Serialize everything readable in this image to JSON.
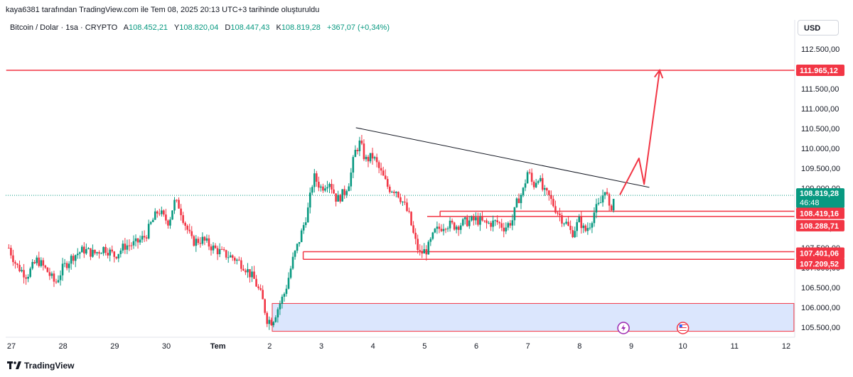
{
  "header": {
    "created_by": "kaya6381 tarafından TradingView.com ile Tem 08, 2025 20:13 UTC+3 tarihinde oluşturuldu"
  },
  "symbol": {
    "name": "Bitcoin / Dolar · 1sa · CRYPTO",
    "open_label": "A",
    "open": "108.452,21",
    "high_label": "Y",
    "high": "108.820,04",
    "low_label": "D",
    "low": "108.447,43",
    "close_label": "K",
    "close": "108.819,28",
    "change": "+367,07 (+0,34%)"
  },
  "currency": "USD",
  "footer": {
    "brand": "TradingView"
  },
  "colors": {
    "up": "#089981",
    "down": "#f23645",
    "line": "#131722",
    "zone": "#dbe6fd"
  },
  "chart_data": {
    "type": "candlestick",
    "ylim": [
      105300,
      112800
    ],
    "y_ticks": [
      105500,
      106000,
      106500,
      107000,
      107500,
      108000,
      108500,
      109000,
      109500,
      110000,
      110500,
      111000,
      111500,
      112000,
      112500
    ],
    "y_tick_labels": [
      "105.500,00",
      "106.000,00",
      "106.500,00",
      "107.000,00",
      "107.500,00",
      "108.000,00",
      "108.500,00",
      "109.000,00",
      "109.500,00",
      "110.000,00",
      "110.500,00",
      "111.000,00",
      "111.500,00",
      "112.000,00",
      "112.500,00"
    ],
    "x_range": [
      27,
      112
    ],
    "x_ticks": [
      {
        "x": 27,
        "label": "27"
      },
      {
        "x": 28,
        "label": "28"
      },
      {
        "x": 29,
        "label": "29"
      },
      {
        "x": 30,
        "label": "30"
      },
      {
        "x": 31,
        "label": "Tem"
      },
      {
        "x": 32,
        "label": "2"
      },
      {
        "x": 33,
        "label": "3"
      },
      {
        "x": 34,
        "label": "4"
      },
      {
        "x": 35,
        "label": "5"
      },
      {
        "x": 36,
        "label": "6"
      },
      {
        "x": 37,
        "label": "7"
      },
      {
        "x": 38,
        "label": "8"
      },
      {
        "x": 39,
        "label": "9"
      },
      {
        "x": 40,
        "label": "10"
      },
      {
        "x": 41,
        "label": "11"
      },
      {
        "x": 42,
        "label": "12"
      }
    ],
    "price_path": [
      [
        26.95,
        107500
      ],
      [
        27.1,
        107050
      ],
      [
        27.3,
        106800
      ],
      [
        27.5,
        107200
      ],
      [
        27.7,
        106900
      ],
      [
        27.85,
        106600
      ],
      [
        28.0,
        107000
      ],
      [
        28.2,
        107300
      ],
      [
        28.4,
        107450
      ],
      [
        28.6,
        107350
      ],
      [
        28.8,
        107500
      ],
      [
        29.0,
        107300
      ],
      [
        29.2,
        107550
      ],
      [
        29.4,
        107600
      ],
      [
        29.6,
        107800
      ],
      [
        29.7,
        108100
      ],
      [
        29.85,
        108450
      ],
      [
        29.95,
        108250
      ],
      [
        30.05,
        108150
      ],
      [
        30.15,
        108650
      ],
      [
        30.25,
        108550
      ],
      [
        30.35,
        108150
      ],
      [
        30.5,
        107650
      ],
      [
        30.7,
        107700
      ],
      [
        30.9,
        107500
      ],
      [
        31.1,
        107350
      ],
      [
        31.3,
        107250
      ],
      [
        31.5,
        107050
      ],
      [
        31.7,
        106700
      ],
      [
        31.85,
        106250
      ],
      [
        31.95,
        105700
      ],
      [
        32.05,
        105650
      ],
      [
        32.15,
        105950
      ],
      [
        32.3,
        106400
      ],
      [
        32.45,
        107200
      ],
      [
        32.6,
        107800
      ],
      [
        32.75,
        108500
      ],
      [
        32.85,
        109300
      ],
      [
        33.0,
        109000
      ],
      [
        33.15,
        109200
      ],
      [
        33.3,
        108700
      ],
      [
        33.45,
        108900
      ],
      [
        33.55,
        109200
      ],
      [
        33.65,
        109900
      ],
      [
        33.75,
        110150
      ],
      [
        33.85,
        109700
      ],
      [
        34.0,
        109800
      ],
      [
        34.15,
        109400
      ],
      [
        34.3,
        109000
      ],
      [
        34.45,
        108950
      ],
      [
        34.6,
        108600
      ],
      [
        34.7,
        108300
      ],
      [
        34.8,
        107750
      ],
      [
        34.9,
        107350
      ],
      [
        35.05,
        107450
      ],
      [
        35.2,
        107900
      ],
      [
        35.4,
        108100
      ],
      [
        35.6,
        108050
      ],
      [
        35.8,
        108150
      ],
      [
        36.0,
        108200
      ],
      [
        36.2,
        108100
      ],
      [
        36.4,
        108150
      ],
      [
        36.55,
        108000
      ],
      [
        36.7,
        108200
      ],
      [
        36.8,
        108700
      ],
      [
        36.9,
        108900
      ],
      [
        37.0,
        109450
      ],
      [
        37.1,
        109050
      ],
      [
        37.2,
        109300
      ],
      [
        37.3,
        108900
      ],
      [
        37.4,
        108800
      ],
      [
        37.55,
        108450
      ],
      [
        37.65,
        108250
      ],
      [
        37.75,
        108100
      ],
      [
        37.85,
        107850
      ],
      [
        38.0,
        108200
      ],
      [
        38.1,
        107900
      ],
      [
        38.2,
        108100
      ],
      [
        38.3,
        108450
      ],
      [
        38.4,
        108600
      ],
      [
        38.5,
        109050
      ],
      [
        38.58,
        108400
      ],
      [
        38.68,
        108819
      ]
    ],
    "trendline": {
      "from": [
        33.67,
        110520
      ],
      "to": [
        39.35,
        109020
      ]
    },
    "forecast_path": [
      [
        38.78,
        108830
      ],
      [
        39.15,
        109750
      ],
      [
        39.25,
        109100
      ],
      [
        39.55,
        111965
      ]
    ],
    "levels": [
      {
        "value": 111965.12,
        "label": "111.965,12",
        "from_x": 26.9
      },
      {
        "value": 108419.16,
        "label": "108.419,16",
        "from_x": 35.3
      },
      {
        "value": 108288.71,
        "label": "108.288,71",
        "from_x": 35.05
      },
      {
        "value": 107401.06,
        "label": "107.401,06",
        "from_x": 32.65
      },
      {
        "value": 107209.52,
        "label": "107.209,52",
        "from_x": 32.65
      }
    ],
    "zone": {
      "from_x": 32.05,
      "to_x": 42.15,
      "low": 105400,
      "high": 106100
    },
    "current_price": {
      "value": 108819.28,
      "label": "108.819,28",
      "countdown": "46:48"
    },
    "event_markers": [
      {
        "x": 38.85,
        "icon": "lightning-icon"
      },
      {
        "x": 40.0,
        "icon": "us-flag-icon"
      }
    ]
  }
}
